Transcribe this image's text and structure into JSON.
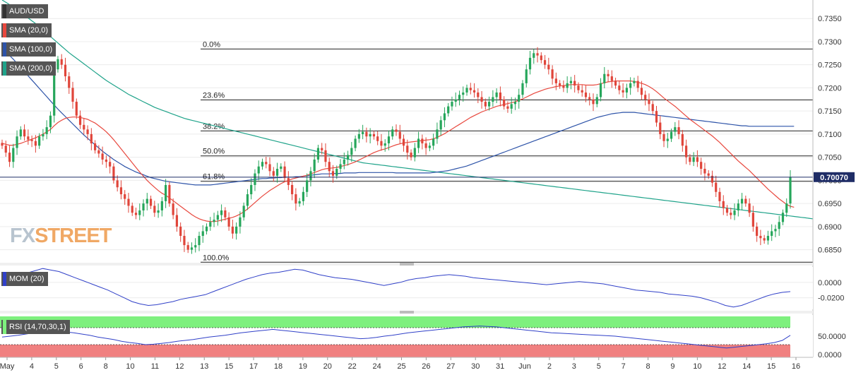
{
  "watermark": {
    "prefix": "FX",
    "word": "STREET"
  },
  "legend": {
    "symbol": "AUD/USD",
    "sma20": "SMA (20,0)",
    "sma100": "SMA (100,0)",
    "sma200": "SMA (200,0)",
    "mom": "MOM (20)",
    "rsi": "RSI (14,70,30,1)"
  },
  "colors": {
    "bull": "#26a65b",
    "bear": "#e0453a",
    "sma20": "#e8483e",
    "sma100": "#2d53a8",
    "sma200": "#1fa38a",
    "mom": "#3040c8",
    "rsi_line": "#3040c8",
    "rsi_overbought": "#7ef07e",
    "rsi_oversold": "#f08080",
    "price_tag": "#1f2d66"
  },
  "chart_data": [
    {
      "type": "candlestick",
      "title": "AUD/USD",
      "price_axis": [
        "0.7350",
        "0.7300",
        "0.7250",
        "0.7200",
        "0.7150",
        "0.7100",
        "0.7050",
        "0.7000",
        "0.6950",
        "0.6900",
        "0.6850"
      ],
      "ylim": [
        0.6825,
        0.739
      ],
      "last_price": "0.70070",
      "x_labels": [
        "May",
        "4",
        "5",
        "6",
        "8",
        "10",
        "11",
        "12",
        "13",
        "15",
        "17",
        "18",
        "19",
        "20",
        "22",
        "24",
        "25",
        "26",
        "27",
        "30",
        "31",
        "Jun",
        "2",
        "3",
        "5",
        "7",
        "8",
        "9",
        "10",
        "12",
        "14",
        "15",
        "16"
      ],
      "fibonacci": [
        {
          "label": "0.0%",
          "value": 0.7284
        },
        {
          "label": "23.6%",
          "value": 0.7174
        },
        {
          "label": "38.2%",
          "value": 0.7107
        },
        {
          "label": "50.0%",
          "value": 0.7053
        },
        {
          "label": "61.8%",
          "value": 0.6998
        },
        {
          "label": "100.0%",
          "value": 0.6823
        }
      ],
      "close": [
        0.7075,
        0.706,
        0.704,
        0.707,
        0.7095,
        0.711,
        0.7095,
        0.7088,
        0.7085,
        0.7075,
        0.7095,
        0.71,
        0.7115,
        0.714,
        0.724,
        0.7262,
        0.725,
        0.7225,
        0.72,
        0.717,
        0.714,
        0.712,
        0.711,
        0.71,
        0.708,
        0.7065,
        0.7058,
        0.7045,
        0.704,
        0.703,
        0.7,
        0.6985,
        0.697,
        0.696,
        0.6945,
        0.693,
        0.6925,
        0.6935,
        0.695,
        0.696,
        0.6945,
        0.693,
        0.6935,
        0.6955,
        0.699,
        0.695,
        0.6925,
        0.69,
        0.688,
        0.686,
        0.685,
        0.6855,
        0.686,
        0.688,
        0.689,
        0.69,
        0.691,
        0.6915,
        0.6925,
        0.6935,
        0.692,
        0.69,
        0.6885,
        0.69,
        0.692,
        0.6945,
        0.697,
        0.699,
        0.7015,
        0.703,
        0.704,
        0.7035,
        0.702,
        0.701,
        0.7025,
        0.703,
        0.7005,
        0.699,
        0.697,
        0.695,
        0.6955,
        0.6975,
        0.7,
        0.702,
        0.7045,
        0.707,
        0.7065,
        0.704,
        0.702,
        0.701,
        0.7025,
        0.7035,
        0.7045,
        0.7055,
        0.707,
        0.709,
        0.71,
        0.7105,
        0.7095,
        0.71,
        0.7095,
        0.7085,
        0.7075,
        0.708,
        0.7095,
        0.711,
        0.7105,
        0.709,
        0.7075,
        0.706,
        0.705,
        0.707,
        0.709,
        0.708,
        0.707,
        0.7075,
        0.709,
        0.711,
        0.713,
        0.7145,
        0.716,
        0.717,
        0.7175,
        0.7185,
        0.719,
        0.72,
        0.7195,
        0.719,
        0.718,
        0.717,
        0.716,
        0.717,
        0.718,
        0.719,
        0.7175,
        0.716,
        0.7155,
        0.7165,
        0.717,
        0.7185,
        0.721,
        0.724,
        0.7265,
        0.7275,
        0.727,
        0.726,
        0.725,
        0.724,
        0.722,
        0.721,
        0.7205,
        0.72,
        0.721,
        0.7215,
        0.7205,
        0.7195,
        0.719,
        0.718,
        0.7175,
        0.7165,
        0.718,
        0.721,
        0.723,
        0.7225,
        0.7215,
        0.7205,
        0.7195,
        0.719,
        0.72,
        0.721,
        0.7215,
        0.72,
        0.7185,
        0.7175,
        0.7165,
        0.715,
        0.7125,
        0.71,
        0.7085,
        0.709,
        0.7105,
        0.7115,
        0.71,
        0.7075,
        0.705,
        0.704,
        0.705,
        0.704,
        0.7025,
        0.7015,
        0.701,
        0.6995,
        0.6975,
        0.6955,
        0.694,
        0.693,
        0.6925,
        0.6935,
        0.695,
        0.696,
        0.695,
        0.693,
        0.69,
        0.688,
        0.6875,
        0.687,
        0.688,
        0.689,
        0.6895,
        0.691,
        0.693,
        0.695,
        0.7007
      ],
      "sma20": [
        0.708,
        0.7078,
        0.7076,
        0.7076,
        0.7078,
        0.708,
        0.7083,
        0.7086,
        0.7089,
        0.7092,
        0.7096,
        0.71,
        0.7105,
        0.711,
        0.7118,
        0.7125,
        0.713,
        0.7134,
        0.7136,
        0.7137,
        0.7137,
        0.7136,
        0.7134,
        0.7132,
        0.7128,
        0.7124,
        0.7118,
        0.7112,
        0.7105,
        0.7097,
        0.7088,
        0.7078,
        0.7068,
        0.7058,
        0.7048,
        0.7038,
        0.7028,
        0.7018,
        0.7009,
        0.7,
        0.6992,
        0.6985,
        0.6978,
        0.6972,
        0.6968,
        0.6962,
        0.6956,
        0.695,
        0.6944,
        0.6938,
        0.6932,
        0.6926,
        0.6921,
        0.6917,
        0.6914,
        0.6912,
        0.6911,
        0.6911,
        0.6912,
        0.6914,
        0.6916,
        0.6918,
        0.692,
        0.6923,
        0.6927,
        0.6932,
        0.6938,
        0.6945,
        0.6952,
        0.6959,
        0.6966,
        0.6972,
        0.6978,
        0.6983,
        0.6988,
        0.6993,
        0.6997,
        0.7,
        0.7003,
        0.7005,
        0.7007,
        0.7009,
        0.7011,
        0.7014,
        0.7017,
        0.702,
        0.7023,
        0.7025,
        0.7026,
        0.7027,
        0.7028,
        0.703,
        0.7032,
        0.7034,
        0.7037,
        0.704,
        0.7044,
        0.7048,
        0.7052,
        0.7056,
        0.706,
        0.7063,
        0.7066,
        0.7068,
        0.7071,
        0.7074,
        0.7077,
        0.7079,
        0.7081,
        0.7082,
        0.7083,
        0.7084,
        0.7085,
        0.7086,
        0.7087,
        0.7088,
        0.709,
        0.7093,
        0.7097,
        0.7101,
        0.7106,
        0.7111,
        0.7116,
        0.7121,
        0.7126,
        0.7131,
        0.7136,
        0.714,
        0.7144,
        0.7148,
        0.7151,
        0.7154,
        0.7157,
        0.716,
        0.7162,
        0.7164,
        0.7166,
        0.7168,
        0.717,
        0.7173,
        0.7176,
        0.718,
        0.7184,
        0.7188,
        0.7191,
        0.7194,
        0.7197,
        0.7199,
        0.7201,
        0.7203,
        0.7204,
        0.7205,
        0.7206,
        0.7207,
        0.7207,
        0.7207,
        0.7207,
        0.7206,
        0.7206,
        0.7206,
        0.7207,
        0.7209,
        0.7211,
        0.7213,
        0.7214,
        0.7215,
        0.7215,
        0.7215,
        0.7215,
        0.7215,
        0.7214,
        0.7212,
        0.721,
        0.7207,
        0.7203,
        0.7198,
        0.7192,
        0.7185,
        0.7178,
        0.7172,
        0.7166,
        0.716,
        0.7153,
        0.7146,
        0.7139,
        0.7132,
        0.7126,
        0.712,
        0.7114,
        0.7108,
        0.7102,
        0.7096,
        0.7089,
        0.7082,
        0.7074,
        0.7066,
        0.7058,
        0.705,
        0.7042,
        0.7035,
        0.7028,
        0.7021,
        0.7013,
        0.7005,
        0.6997,
        0.6989,
        0.6981,
        0.6974,
        0.6967,
        0.696,
        0.6954,
        0.6948,
        0.6944,
        0.6942
      ],
      "sma100": [
        0.7285,
        0.7278,
        0.727,
        0.7262,
        0.7253,
        0.7244,
        0.7235,
        0.7226,
        0.7217,
        0.7208,
        0.7199,
        0.719,
        0.7181,
        0.7172,
        0.7163,
        0.7154,
        0.7146,
        0.7138,
        0.713,
        0.7122,
        0.7114,
        0.7106,
        0.7098,
        0.7091,
        0.7084,
        0.7077,
        0.707,
        0.7063,
        0.7057,
        0.7051,
        0.7045,
        0.704,
        0.7035,
        0.703,
        0.7026,
        0.7022,
        0.7018,
        0.7015,
        0.7012,
        0.7009,
        0.7006,
        0.7004,
        0.7002,
        0.7,
        0.6998,
        0.6997,
        0.6996,
        0.6995,
        0.6994,
        0.6993,
        0.6992,
        0.6991,
        0.699,
        0.699,
        0.699,
        0.699,
        0.699,
        0.6991,
        0.6992,
        0.6993,
        0.6994,
        0.6995,
        0.6996,
        0.6997,
        0.6998,
        0.6999,
        0.7,
        0.7001,
        0.7002,
        0.7003,
        0.7004,
        0.7004,
        0.7005,
        0.7005,
        0.7006,
        0.7006,
        0.7007,
        0.7007,
        0.7007,
        0.7008,
        0.7008,
        0.7009,
        0.701,
        0.7011,
        0.7012,
        0.7013,
        0.7014,
        0.7014,
        0.7014,
        0.7015,
        0.7015,
        0.7015,
        0.7016,
        0.7016,
        0.7016,
        0.7016,
        0.7017,
        0.7017,
        0.7017,
        0.7017,
        0.7017,
        0.7017,
        0.7017,
        0.7017,
        0.7017,
        0.7017,
        0.7016,
        0.7016,
        0.7016,
        0.7016,
        0.7016,
        0.7016,
        0.7016,
        0.7016,
        0.7016,
        0.7016,
        0.7017,
        0.7018,
        0.7019,
        0.702,
        0.7021,
        0.7023,
        0.7025,
        0.7027,
        0.7029,
        0.7031,
        0.7034,
        0.7037,
        0.704,
        0.7043,
        0.7046,
        0.7049,
        0.7052,
        0.7055,
        0.7058,
        0.7061,
        0.7064,
        0.7067,
        0.707,
        0.7073,
        0.7076,
        0.7079,
        0.7082,
        0.7085,
        0.7088,
        0.7091,
        0.7094,
        0.7097,
        0.71,
        0.7103,
        0.7106,
        0.7109,
        0.7112,
        0.7115,
        0.7118,
        0.7121,
        0.7124,
        0.7127,
        0.713,
        0.7133,
        0.7136,
        0.7138,
        0.714,
        0.7142,
        0.7144,
        0.7145,
        0.7146,
        0.7147,
        0.7147,
        0.7147,
        0.7147,
        0.7146,
        0.7145,
        0.7144,
        0.7143,
        0.7142,
        0.7141,
        0.714,
        0.7139,
        0.7138,
        0.7137,
        0.7136,
        0.7135,
        0.7134,
        0.7133,
        0.7132,
        0.7131,
        0.713,
        0.7129,
        0.7128,
        0.7127,
        0.7126,
        0.7125,
        0.7124,
        0.7123,
        0.7122,
        0.7121,
        0.712,
        0.7119,
        0.7118,
        0.7118,
        0.7117,
        0.7117,
        0.7117,
        0.7117,
        0.7117,
        0.7117,
        0.7117,
        0.7117,
        0.7117,
        0.7117,
        0.7117,
        0.7117,
        0.7117
      ],
      "sma200": [
        0.739,
        0.7385,
        0.738,
        0.7375,
        0.7369,
        0.7363,
        0.7357,
        0.7351,
        0.7345,
        0.7339,
        0.7332,
        0.7325,
        0.7318,
        0.7311,
        0.7304,
        0.7297,
        0.729,
        0.7283,
        0.7276,
        0.727,
        0.7264,
        0.7258,
        0.7252,
        0.7246,
        0.724,
        0.7234,
        0.7228,
        0.7222,
        0.7216,
        0.7211,
        0.7206,
        0.7201,
        0.7196,
        0.7191,
        0.7186,
        0.7182,
        0.7178,
        0.7174,
        0.717,
        0.7166,
        0.7162,
        0.7158,
        0.7155,
        0.7152,
        0.7149,
        0.7146,
        0.7143,
        0.714,
        0.7137,
        0.7134,
        0.7132,
        0.713,
        0.7128,
        0.7126,
        0.7124,
        0.7122,
        0.712,
        0.7118,
        0.7116,
        0.7114,
        0.7112,
        0.711,
        0.7108,
        0.7106,
        0.7104,
        0.7102,
        0.71,
        0.7098,
        0.7096,
        0.7094,
        0.7092,
        0.709,
        0.7088,
        0.7086,
        0.7084,
        0.7082,
        0.708,
        0.7078,
        0.7076,
        0.7074,
        0.7072,
        0.707,
        0.7068,
        0.7066,
        0.7064,
        0.7062,
        0.706,
        0.7058,
        0.7056,
        0.7054,
        0.7052,
        0.705,
        0.7048,
        0.7046,
        0.7044,
        0.7042,
        0.704,
        0.7038,
        0.7037,
        0.7036,
        0.7035,
        0.7034,
        0.7033,
        0.7032,
        0.7031,
        0.703,
        0.7029,
        0.7028,
        0.7027,
        0.7026,
        0.7025,
        0.7024,
        0.7023,
        0.7022,
        0.7021,
        0.702,
        0.7019,
        0.7018,
        0.7017,
        0.7016,
        0.7015,
        0.7014,
        0.7013,
        0.7012,
        0.7011,
        0.701,
        0.7009,
        0.7008,
        0.7007,
        0.7006,
        0.7005,
        0.7004,
        0.7003,
        0.7002,
        0.7001,
        0.7,
        0.6999,
        0.6998,
        0.6997,
        0.6996,
        0.6995,
        0.6994,
        0.6993,
        0.6992,
        0.6991,
        0.699,
        0.6989,
        0.6988,
        0.6987,
        0.6986,
        0.6985,
        0.6984,
        0.6983,
        0.6982,
        0.6981,
        0.698,
        0.6979,
        0.6978,
        0.6977,
        0.6976,
        0.6975,
        0.6974,
        0.6973,
        0.6972,
        0.6971,
        0.697,
        0.6969,
        0.6968,
        0.6967,
        0.6966,
        0.6965,
        0.6964,
        0.6963,
        0.6962,
        0.6961,
        0.696,
        0.6959,
        0.6958,
        0.6957,
        0.6956,
        0.6955,
        0.6954,
        0.6953,
        0.6952,
        0.6951,
        0.695,
        0.6949,
        0.6948,
        0.6947,
        0.6946,
        0.6945,
        0.6944,
        0.6943,
        0.6942,
        0.6941,
        0.694,
        0.6939,
        0.6938,
        0.6937,
        0.6936,
        0.6935,
        0.6934,
        0.6933,
        0.6932,
        0.6931,
        0.693,
        0.6929,
        0.6928,
        0.6927,
        0.6926,
        0.6925,
        0.6924,
        0.6923,
        0.6922,
        0.6921,
        0.692,
        0.6919,
        0.6918,
        0.6917
      ],
      "series": [
        {
          "name": "SMA (20,0)"
        },
        {
          "name": "SMA (100,0)"
        },
        {
          "name": "SMA (200,0)"
        }
      ]
    },
    {
      "type": "line",
      "title": "MOM (20)",
      "axis_labels": [
        "0.0000",
        "-0.0200"
      ],
      "ylim": [
        -0.035,
        0.02
      ],
      "values": [
        0.005,
        0.008,
        0.01,
        0.012,
        0.015,
        0.018,
        0.016,
        0.014,
        0.01,
        0.006,
        0.002,
        -0.002,
        -0.006,
        -0.01,
        -0.015,
        -0.02,
        -0.025,
        -0.028,
        -0.03,
        -0.029,
        -0.027,
        -0.025,
        -0.022,
        -0.02,
        -0.018,
        -0.016,
        -0.012,
        -0.008,
        -0.004,
        0.0,
        0.004,
        0.007,
        0.01,
        0.012,
        0.013,
        0.015,
        0.017,
        0.016,
        0.013,
        0.01,
        0.008,
        0.006,
        0.005,
        0.004,
        0.002,
        0.0,
        -0.002,
        -0.004,
        -0.002,
        0.0,
        0.003,
        0.005,
        0.006,
        0.008,
        0.009,
        0.01,
        0.009,
        0.008,
        0.006,
        0.005,
        0.004,
        0.003,
        0.002,
        0.001,
        0.0,
        -0.001,
        -0.002,
        -0.003,
        -0.002,
        -0.001,
        0.0,
        0.001,
        0.0,
        -0.001,
        -0.002,
        -0.004,
        -0.006,
        -0.008,
        -0.01,
        -0.011,
        -0.012,
        -0.013,
        -0.015,
        -0.016,
        -0.017,
        -0.018,
        -0.02,
        -0.023,
        -0.026,
        -0.03,
        -0.032,
        -0.03,
        -0.026,
        -0.022,
        -0.018,
        -0.015,
        -0.013,
        -0.012
      ]
    },
    {
      "type": "line",
      "title": "RSI (14,70,30,1)",
      "axis_labels": [
        "50.0000",
        "0.0000"
      ],
      "ylim": [
        0,
        100
      ],
      "bands": {
        "overbought": 70,
        "oversold": 30
      },
      "values": [
        48,
        50,
        52,
        55,
        58,
        62,
        64,
        62,
        60,
        58,
        55,
        52,
        48,
        45,
        42,
        38,
        35,
        33,
        30,
        31,
        33,
        35,
        38,
        40,
        42,
        45,
        48,
        50,
        52,
        55,
        58,
        60,
        62,
        64,
        66,
        64,
        62,
        60,
        58,
        56,
        54,
        52,
        50,
        48,
        46,
        44,
        45,
        47,
        50,
        52,
        55,
        58,
        60,
        62,
        64,
        66,
        68,
        70,
        72,
        73,
        74,
        73,
        72,
        70,
        68,
        66,
        64,
        62,
        60,
        58,
        57,
        56,
        55,
        54,
        53,
        52,
        51,
        50,
        48,
        46,
        44,
        42,
        40,
        38,
        36,
        34,
        32,
        30,
        28,
        26,
        24,
        22,
        24,
        26,
        28,
        30,
        32,
        35,
        40,
        52
      ]
    }
  ]
}
